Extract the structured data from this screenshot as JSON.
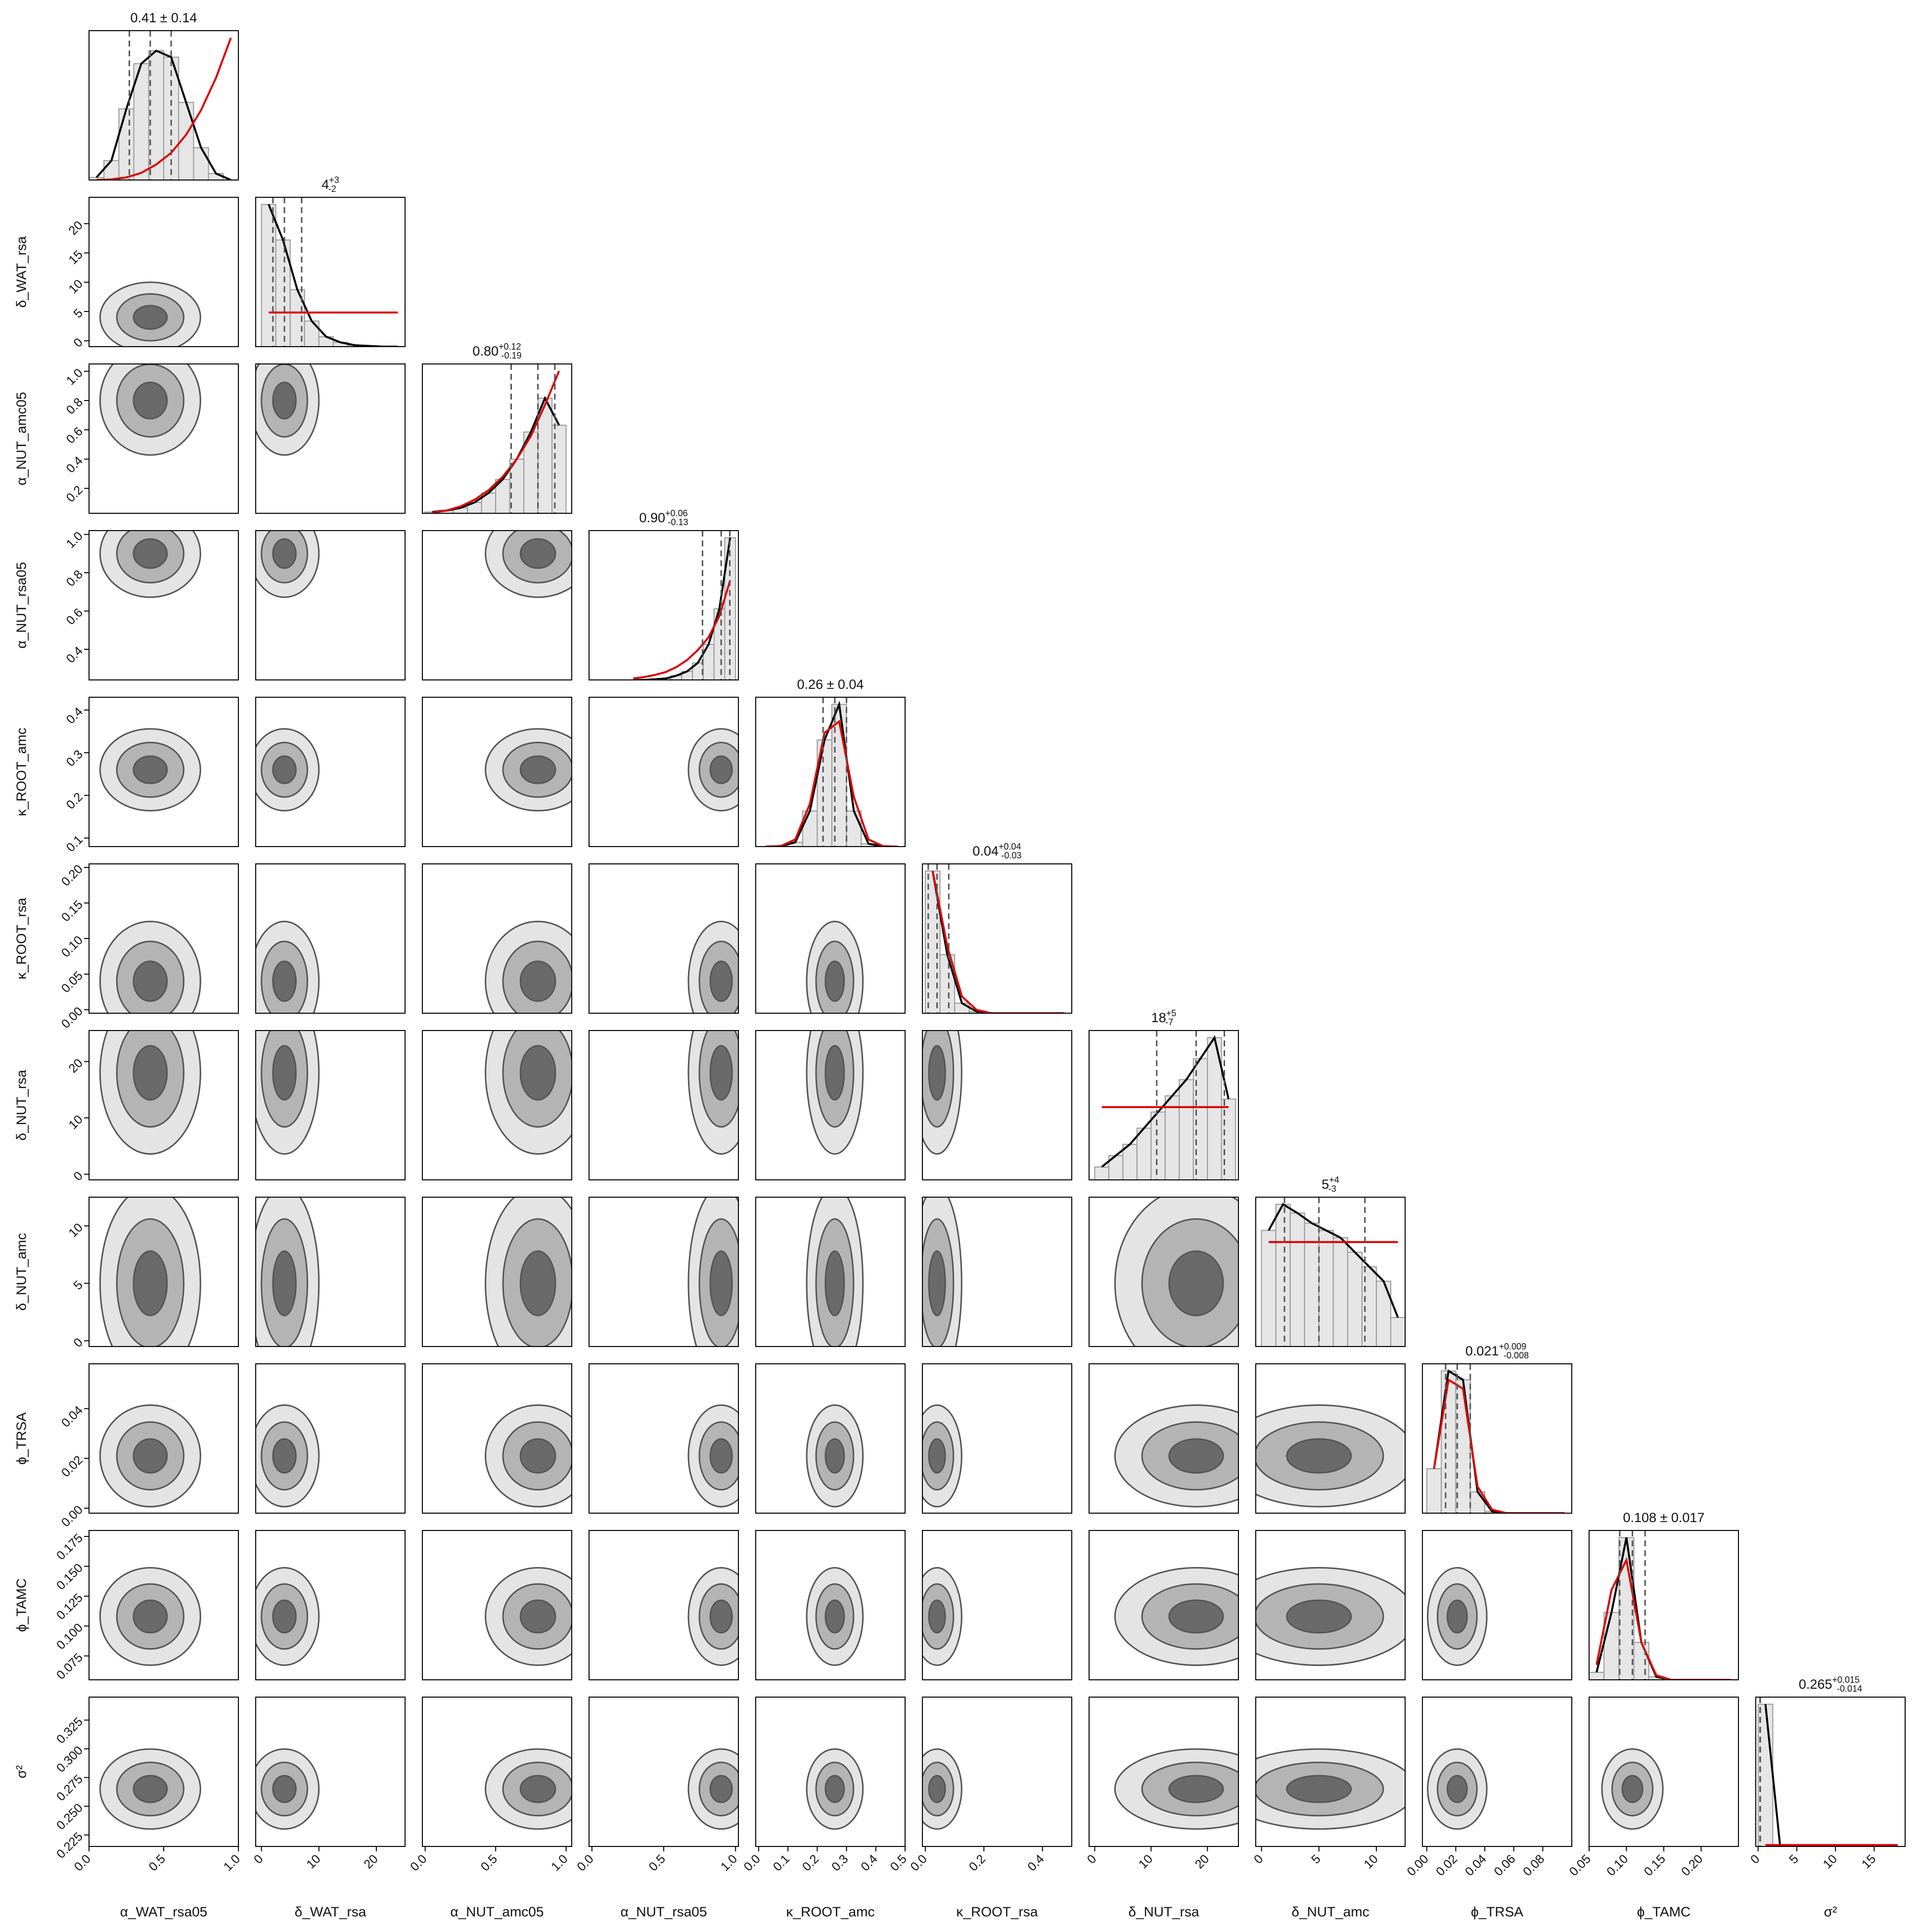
{
  "chart_data": {
    "type": "corner",
    "hist_color": "#e6e6e6",
    "kde_color": "#000000",
    "prior_color": "#dd0000",
    "contour_colors": [
      "#e4e4e4",
      "#b4b4b4",
      "#6a6a6a"
    ],
    "params": [
      {
        "name": "α_WAT_rsa05",
        "title": "0.41 ± 0.14",
        "xlim": [
          0,
          1
        ],
        "xticks": [
          {
            "value": 0,
            "label": "0.0"
          },
          0.5,
          {
            "value": 1,
            "label": "1.0"
          }
        ],
        "quantiles": [
          0.27,
          0.41,
          0.55
        ],
        "bins": [
          0,
          0.1,
          0.2,
          0.3,
          0.4,
          0.5,
          0.6,
          0.7,
          0.8,
          0.9,
          1.0
        ],
        "hist": [
          0.02,
          0.15,
          0.55,
          0.9,
          1.0,
          0.95,
          0.6,
          0.25,
          0.05,
          0.0
        ],
        "prior": [
          0.0002,
          0.005,
          0.02,
          0.055,
          0.12,
          0.21,
          0.35,
          0.54,
          0.79,
          1.1
        ]
      },
      {
        "name": "δ_WAT_rsa",
        "title": "4",
        "plus": "+3",
        "minus": "-2",
        "xlim": [
          -1,
          25
        ],
        "xticks": [
          0,
          10,
          20
        ],
        "ylim": [
          -1,
          24.5
        ],
        "yticks": [
          0,
          5,
          10,
          15,
          20
        ],
        "quantiles": [
          2,
          4,
          7
        ],
        "bins": [
          0,
          2.5,
          5,
          7.5,
          10,
          12.5,
          15,
          17.5,
          20,
          22.5,
          25
        ],
        "hist": [
          1.0,
          0.75,
          0.4,
          0.18,
          0.07,
          0.03,
          0.01,
          0.005,
          0,
          0
        ],
        "prior": [
          0.24,
          0.24,
          0.24,
          0.24,
          0.24,
          0.24,
          0.24,
          0.24,
          0.24,
          0.24
        ]
      },
      {
        "name": "α_NUT_amc05",
        "title": "0.80",
        "plus": "+0.12",
        "minus": "-0.19",
        "xlim": [
          -0.02,
          1.04
        ],
        "xticks": [
          {
            "value": 0,
            "label": "0.0"
          },
          0.5,
          {
            "value": 1,
            "label": "1.0"
          }
        ],
        "ylim": [
          0.03,
          1.05
        ],
        "yticks": [
          0.2,
          0.4,
          0.6,
          0.8,
          {
            "value": 1,
            "label": "1.0"
          }
        ],
        "quantiles": [
          0.61,
          0.8,
          0.92
        ],
        "bins": [
          0,
          0.1,
          0.2,
          0.3,
          0.4,
          0.5,
          0.6,
          0.7,
          0.8,
          0.9,
          1.0
        ],
        "hist": [
          0.01,
          0.02,
          0.04,
          0.08,
          0.15,
          0.25,
          0.4,
          0.6,
          0.85,
          0.65
        ],
        "prior": [
          0.005,
          0.02,
          0.05,
          0.1,
          0.17,
          0.27,
          0.4,
          0.57,
          0.8,
          1.05
        ]
      },
      {
        "name": "α_NUT_rsa05",
        "title": "0.90",
        "plus": "+0.06",
        "minus": "-0.13",
        "xlim": [
          -0.02,
          1.02
        ],
        "xticks": [
          {
            "value": 0,
            "label": "0.0"
          },
          0.5,
          {
            "value": 1,
            "label": "1.0"
          }
        ],
        "ylim": [
          0.24,
          1.02
        ],
        "yticks": [
          0.4,
          0.6,
          0.8,
          {
            "value": 1,
            "label": "1.0"
          }
        ],
        "quantiles": [
          0.77,
          0.9,
          0.96
        ],
        "bins": [
          0.25,
          0.325,
          0.4,
          0.475,
          0.55,
          0.625,
          0.7,
          0.775,
          0.85,
          0.925,
          1.0
        ],
        "hist": [
          0,
          0,
          0.005,
          0.01,
          0.03,
          0.06,
          0.12,
          0.25,
          0.5,
          1.0
        ],
        "prior": [
          0.01,
          0.02,
          0.035,
          0.055,
          0.09,
          0.14,
          0.21,
          0.3,
          0.45,
          0.7
        ]
      },
      {
        "name": "κ_ROOT_amc",
        "title": "0.26 ± 0.04",
        "xlim": [
          -0.01,
          0.5
        ],
        "xticks": [
          {
            "value": 0,
            "label": "0.0"
          },
          0.1,
          0.2,
          0.3,
          0.4,
          0.5
        ],
        "ylim": [
          0.08,
          0.43
        ],
        "yticks": [
          0.1,
          0.2,
          0.3,
          0.4
        ],
        "quantiles": [
          0.22,
          0.26,
          0.3
        ],
        "bins": [
          0,
          0.05,
          0.1,
          0.15,
          0.2,
          0.25,
          0.3,
          0.35,
          0.4,
          0.45,
          0.5
        ],
        "hist": [
          0,
          0.003,
          0.03,
          0.25,
          0.75,
          1.0,
          0.25,
          0.02,
          0,
          0
        ],
        "prior": [
          0,
          0.003,
          0.05,
          0.3,
          0.8,
          0.88,
          0.35,
          0.05,
          0.003,
          0
        ]
      },
      {
        "name": "κ_ROOT_rsa",
        "title": "0.04",
        "plus": "+0.04",
        "minus": "-0.03",
        "xlim": [
          -0.01,
          0.5
        ],
        "xticks": [
          {
            "value": 0,
            "label": "0.0"
          },
          0.2,
          0.4
        ],
        "ylim": [
          -0.005,
          0.205
        ],
        "yticks": [
          {
            "value": 0,
            "label": "0.00"
          },
          0.05,
          {
            "value": 0.1,
            "label": "0.10"
          },
          0.15,
          {
            "value": 0.2,
            "label": "0.20"
          }
        ],
        "quantiles": [
          0.01,
          0.04,
          0.08
        ],
        "bins": [
          0,
          0.05,
          0.1,
          0.15,
          0.2,
          0.25,
          0.3,
          0.35,
          0.4,
          0.45,
          0.5
        ],
        "hist": [
          0.85,
          0.35,
          0.06,
          0.01,
          0,
          0,
          0,
          0,
          0,
          0
        ],
        "prior": [
          0.85,
          0.4,
          0.1,
          0.02,
          0,
          0,
          0,
          0,
          0,
          0
        ]
      },
      {
        "name": "δ_NUT_rsa",
        "title": "18",
        "plus": "+5",
        "minus": "-7",
        "xlim": [
          -1,
          25.5
        ],
        "xticks": [
          0,
          10,
          20
        ],
        "ylim": [
          -1,
          25.5
        ],
        "yticks": [
          0,
          10,
          20
        ],
        "quantiles": [
          11,
          18,
          23
        ],
        "bins": [
          0,
          2.5,
          5,
          7.5,
          10,
          12.5,
          15,
          17.5,
          20,
          22.5,
          25
        ],
        "hist": [
          0.08,
          0.15,
          0.22,
          0.32,
          0.42,
          0.52,
          0.62,
          0.75,
          0.88,
          0.5
        ],
        "prior": [
          0.45,
          0.45,
          0.45,
          0.45,
          0.45,
          0.45,
          0.45,
          0.45,
          0.45,
          0.45
        ]
      },
      {
        "name": "δ_NUT_amc",
        "title": "5",
        "plus": "+4",
        "minus": "-3",
        "xlim": [
          -0.5,
          12.5
        ],
        "xticks": [
          0,
          5,
          10
        ],
        "ylim": [
          -0.5,
          12.5
        ],
        "yticks": [
          0,
          5,
          10
        ],
        "quantiles": [
          2,
          5,
          9
        ],
        "bins": [
          0,
          1.25,
          2.5,
          3.75,
          5,
          6.25,
          7.5,
          8.75,
          10,
          11.25,
          12.5
        ],
        "hist": [
          0.8,
          0.98,
          0.92,
          0.85,
          0.8,
          0.75,
          0.65,
          0.55,
          0.45,
          0.2
        ],
        "prior": [
          0.72,
          0.72,
          0.72,
          0.72,
          0.72,
          0.72,
          0.72,
          0.72,
          0.72,
          0.72
        ]
      },
      {
        "name": "ϕ_TRSA",
        "title": "0.021",
        "plus": "+0.009",
        "minus": "-0.008",
        "xlim": [
          -0.003,
          0.1
        ],
        "xticks": [
          {
            "value": 0,
            "label": "0.00"
          },
          0.02,
          0.04,
          0.06,
          0.08
        ],
        "ylim": [
          -0.002,
          0.058
        ],
        "yticks": [
          {
            "value": 0,
            "label": "0.00"
          },
          0.02,
          0.04
        ],
        "quantiles": [
          0.013,
          0.021,
          0.03
        ],
        "bins": [
          0,
          0.01,
          0.02,
          0.03,
          0.04,
          0.05,
          0.06,
          0.07,
          0.08,
          0.09,
          0.1
        ],
        "hist": [
          0.25,
          0.8,
          0.75,
          0.12,
          0.01,
          0,
          0,
          0,
          0,
          0
        ],
        "prior": [
          0.25,
          0.75,
          0.7,
          0.15,
          0.02,
          0,
          0,
          0,
          0,
          0
        ]
      },
      {
        "name": "ϕ_TAMC",
        "title": "0.108 ± 0.017",
        "xlim": [
          0.05,
          0.25
        ],
        "xticks": [
          0.05,
          {
            "value": 0.1,
            "label": "0.10"
          },
          0.15,
          {
            "value": 0.2,
            "label": "0.20"
          }
        ],
        "ylim": [
          0.055,
          0.18
        ],
        "yticks": [
          0.075,
          {
            "value": 0.1,
            "label": "0.100"
          },
          0.125,
          {
            "value": 0.15,
            "label": "0.150"
          },
          0.175
        ],
        "quantiles": [
          0.091,
          0.108,
          0.125
        ],
        "bins": [
          0.05,
          0.07,
          0.09,
          0.11,
          0.13,
          0.15,
          0.17,
          0.19,
          0.21,
          0.23,
          0.25
        ],
        "hist": [
          0.05,
          0.45,
          0.95,
          0.25,
          0.02,
          0,
          0,
          0,
          0,
          0
        ],
        "prior": [
          0.1,
          0.6,
          0.8,
          0.25,
          0.03,
          0,
          0,
          0,
          0,
          0
        ]
      },
      {
        "name": "σ²",
        "title": "0.265",
        "plus": "+0.015",
        "minus": "-0.014",
        "xlim": [
          -0.3,
          19
        ],
        "xticks": [
          0,
          5,
          10,
          15
        ],
        "ylim": [
          0.215,
          0.345
        ],
        "yticks": [
          0.225,
          {
            "value": 0.25,
            "label": "0.250"
          },
          0.275,
          {
            "value": 0.3,
            "label": "0.300"
          },
          0.325
        ],
        "quantiles": [
          0.251,
          0.265,
          0.28
        ],
        "bins": [
          0,
          1.9,
          3.8,
          5.7,
          7.6,
          9.5,
          11.4,
          13.3,
          15.2,
          17.1,
          19
        ],
        "hist": [
          1.0,
          0,
          0,
          0,
          0,
          0,
          0,
          0,
          0,
          0
        ],
        "prior": [
          0.01,
          0.01,
          0.01,
          0.01,
          0.01,
          0.01,
          0.01,
          0.01,
          0.01,
          0.01
        ]
      }
    ]
  }
}
